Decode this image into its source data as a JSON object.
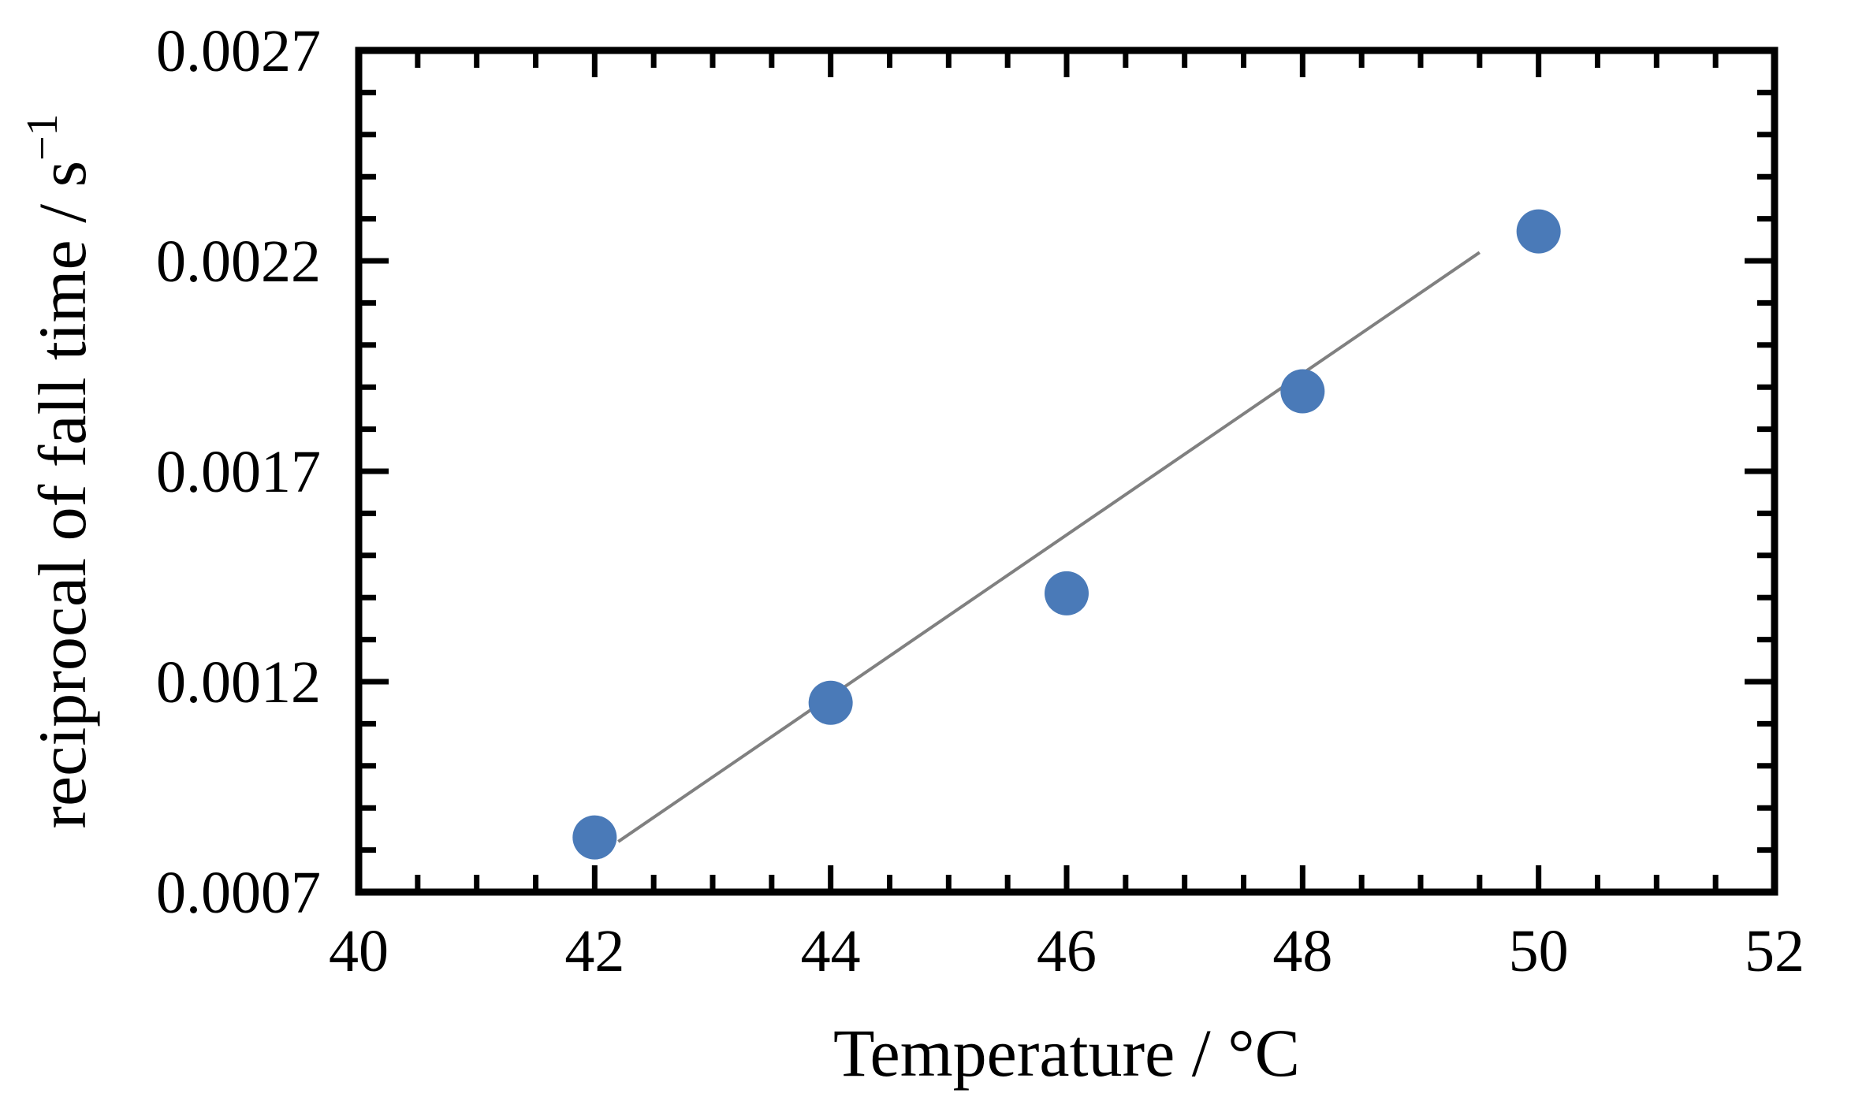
{
  "chart_data": {
    "type": "scatter",
    "title": "",
    "xlabel": "Temperature /  °C",
    "ylabel_main": "reciprocal of fall time  / s",
    "ylabel_sup": "−1",
    "xlim": [
      40,
      52
    ],
    "ylim": [
      0.0007,
      0.0027
    ],
    "x_ticks": [
      40,
      42,
      44,
      46,
      48,
      50,
      52
    ],
    "x_tick_labels": [
      "40",
      "42",
      "44",
      "46",
      "48",
      "50",
      "52"
    ],
    "y_ticks": [
      0.0007,
      0.0012,
      0.0017,
      0.0022,
      0.0027
    ],
    "y_tick_labels": [
      "0.0007",
      "0.0012",
      "0.0017",
      "0.0022",
      "0.0027"
    ],
    "grid": false,
    "legend": "none",
    "series": [
      {
        "points": [
          {
            "x": 42,
            "y": 0.00083
          },
          {
            "x": 44,
            "y": 0.00115
          },
          {
            "x": 46,
            "y": 0.00141
          },
          {
            "x": 48,
            "y": 0.00189
          },
          {
            "x": 50,
            "y": 0.00227
          }
        ],
        "color": "#4a7ab8"
      }
    ],
    "trendline": {
      "x": [
        42.2,
        49.5
      ],
      "y": [
        0.00082,
        0.00222
      ],
      "color": "#808080"
    }
  }
}
